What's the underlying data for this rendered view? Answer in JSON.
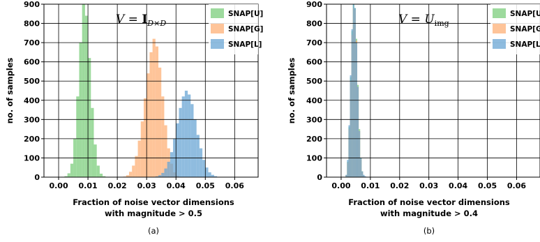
{
  "chart_data": [
    {
      "type": "histogram",
      "subplot_label": "(a)",
      "annotation": {
        "var": "V",
        "eq": " = ",
        "bold": "I",
        "sub": "D×D"
      },
      "xlabel": [
        "Fraction of noise vector dimensions",
        "with magnitude > 0.5"
      ],
      "ylabel": "no. of samples",
      "xlim": [
        -0.005,
        0.068
      ],
      "ylim": [
        0,
        900
      ],
      "xticks": [
        "0.00",
        "0.01",
        "0.02",
        "0.03",
        "0.04",
        "0.05",
        "0.06"
      ],
      "yticks": [
        "0",
        "100",
        "200",
        "300",
        "400",
        "500",
        "600",
        "700",
        "800",
        "900"
      ],
      "grid": true,
      "legend_position": "top-right",
      "bin_width": 0.001,
      "series": [
        {
          "name": "SNAP[U]",
          "color": "#7ccd7c",
          "start": 0.002,
          "values": [
            5,
            20,
            70,
            200,
            420,
            700,
            900,
            840,
            620,
            360,
            170,
            60,
            18,
            5
          ]
        },
        {
          "name": "SNAP[G]",
          "color": "#fdb077",
          "start": 0.022,
          "values": [
            3,
            10,
            28,
            60,
            110,
            190,
            290,
            410,
            540,
            650,
            720,
            680,
            570,
            420,
            270,
            150,
            70,
            25,
            8
          ]
        },
        {
          "name": "SNAP[L]",
          "color": "#6aa5d4",
          "start": 0.033,
          "values": [
            4,
            10,
            22,
            45,
            80,
            130,
            200,
            280,
            360,
            420,
            450,
            430,
            380,
            300,
            220,
            150,
            90,
            50,
            25,
            12,
            5
          ]
        }
      ]
    },
    {
      "type": "histogram",
      "subplot_label": "(b)",
      "annotation": {
        "var": "V",
        "eq": " = ",
        "main": "U",
        "sub": "img"
      },
      "xlabel": [
        "Fraction of noise vector dimensions",
        "with magnitude > 0.4"
      ],
      "ylabel": "no. of samples",
      "xlim": [
        -0.005,
        0.068
      ],
      "ylim": [
        0,
        900
      ],
      "xticks": [
        "0.00",
        "0.01",
        "0.02",
        "0.03",
        "0.04",
        "0.05",
        "0.06"
      ],
      "yticks": [
        "0",
        "100",
        "200",
        "300",
        "400",
        "500",
        "600",
        "700",
        "800",
        "900"
      ],
      "grid": true,
      "legend_position": "top-right",
      "bin_width": 0.0005,
      "series": [
        {
          "name": "SNAP[U]",
          "color": "#7ccd7c",
          "start": 0.0015,
          "values": [
            10,
            80,
            260,
            520,
            760,
            900,
            880,
            720,
            480,
            250,
            100,
            30,
            8
          ]
        },
        {
          "name": "SNAP[G]",
          "color": "#fdb077",
          "start": 0.0015,
          "values": [
            10,
            75,
            250,
            500,
            740,
            880,
            870,
            710,
            470,
            240,
            95,
            28,
            7
          ]
        },
        {
          "name": "SNAP[L]",
          "color": "#6aa5d4",
          "start": 0.0015,
          "values": [
            12,
            90,
            270,
            530,
            770,
            910,
            880,
            700,
            470,
            240,
            100,
            30,
            12,
            5
          ]
        }
      ]
    }
  ]
}
